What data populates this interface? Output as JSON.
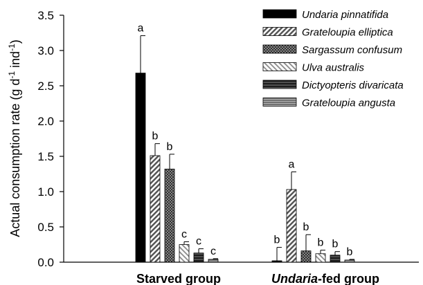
{
  "chart_data": {
    "type": "bar",
    "ylabel": "Actual consumption rate (g d-1 ind-1)",
    "ylabel_parts": {
      "prefix": "Actual consumption rate (g d",
      "sup1": "-1",
      "middle": " ind",
      "sup2": "-1",
      "suffix": ")"
    },
    "ylim": [
      0,
      3.5
    ],
    "yticks": [
      "0.0",
      "0.5",
      "1.0",
      "1.5",
      "2.0",
      "2.5",
      "3.0",
      "3.5"
    ],
    "ytick_values": [
      0,
      0.5,
      1.0,
      1.5,
      2.0,
      2.5,
      3.0,
      3.5
    ],
    "categories": [
      "Starved group",
      "Undaria-fed group"
    ],
    "category_parts": [
      {
        "italic": "",
        "rest": "Starved group"
      },
      {
        "italic": "Undaria",
        "rest": "-fed group"
      }
    ],
    "legend_position": "top-right",
    "series": [
      {
        "name": "Undaria pinnatifida",
        "pattern": "solid-black",
        "values": [
          2.68,
          0.02
        ],
        "errors": [
          0.53,
          0.19
        ],
        "letters": [
          "a",
          "b"
        ]
      },
      {
        "name": "Grateloupia elliptica",
        "pattern": "diagonal",
        "values": [
          1.51,
          1.03
        ],
        "errors": [
          0.17,
          0.25
        ],
        "letters": [
          "b",
          "a"
        ]
      },
      {
        "name": "Sargassum confusum",
        "pattern": "crosshatch",
        "values": [
          1.32,
          0.16
        ],
        "errors": [
          0.21,
          0.23
        ],
        "letters": [
          "b",
          "b"
        ]
      },
      {
        "name": "Ulva australis",
        "pattern": "light-diagonal",
        "values": [
          0.25,
          0.12
        ],
        "errors": [
          0.04,
          0.05
        ],
        "letters": [
          "c",
          "b"
        ]
      },
      {
        "name": "Dictyopteris divaricata",
        "pattern": "horizontal",
        "values": [
          0.13,
          0.1
        ],
        "errors": [
          0.06,
          0.05
        ],
        "letters": [
          "c",
          "b"
        ]
      },
      {
        "name": "Grateloupia angusta",
        "pattern": "gray-stripes",
        "values": [
          0.04,
          0.03
        ],
        "errors": [
          0.01,
          0.01
        ],
        "letters": [
          "c",
          "b"
        ]
      }
    ]
  }
}
